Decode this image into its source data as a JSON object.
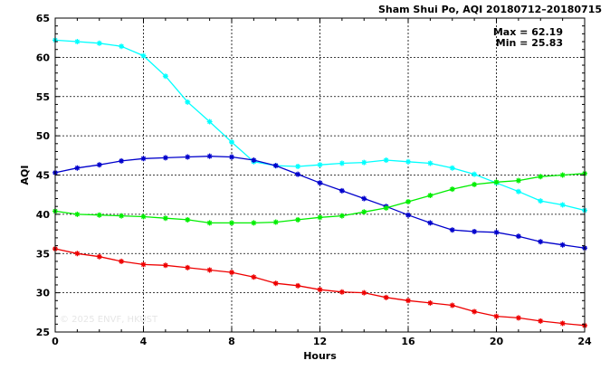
{
  "chart_data": {
    "type": "line",
    "title": "Sham Shui Po, AQI 20180712–20180715",
    "xlabel": "Hours",
    "ylabel": "AQI",
    "xlim": [
      0,
      24
    ],
    "ylim": [
      25,
      65
    ],
    "x_ticks": [
      0,
      4,
      8,
      12,
      16,
      20,
      24
    ],
    "y_ticks": [
      25,
      30,
      35,
      40,
      45,
      50,
      55,
      60,
      65
    ],
    "grid": true,
    "legend": "none",
    "stats": {
      "max_label": "Max = 62.19",
      "min_label": "Min = 25.83"
    },
    "watermark": "© 2025  ENVF, HKUST",
    "x": [
      0,
      1,
      2,
      3,
      4,
      5,
      6,
      7,
      8,
      9,
      10,
      11,
      12,
      13,
      14,
      15,
      16,
      17,
      18,
      19,
      20,
      21,
      22,
      23,
      24
    ],
    "series": [
      {
        "color": "#00ffff",
        "values": [
          62.19,
          62.0,
          61.8,
          61.4,
          60.2,
          57.6,
          54.3,
          51.8,
          49.2,
          46.7,
          46.2,
          46.1,
          46.3,
          46.5,
          46.6,
          46.9,
          46.7,
          46.5,
          45.9,
          45.1,
          44.0,
          42.9,
          41.7,
          41.2,
          40.5
        ]
      },
      {
        "color": "#0000cc",
        "values": [
          45.3,
          45.9,
          46.3,
          46.8,
          47.1,
          47.2,
          47.3,
          47.4,
          47.3,
          46.9,
          46.2,
          45.1,
          44.0,
          43.0,
          42.0,
          41.0,
          39.9,
          38.9,
          38.0,
          37.8,
          37.7,
          37.2,
          36.5,
          36.1,
          35.7
        ]
      },
      {
        "color": "#00ee00",
        "values": [
          40.4,
          40.0,
          39.9,
          39.8,
          39.7,
          39.5,
          39.3,
          38.9,
          38.9,
          38.9,
          39.0,
          39.3,
          39.6,
          39.8,
          40.3,
          40.8,
          41.6,
          42.4,
          43.2,
          43.8,
          44.1,
          44.3,
          44.8,
          45.0,
          45.2
        ]
      },
      {
        "color": "#ee0000",
        "values": [
          35.6,
          35.0,
          34.6,
          34.0,
          33.6,
          33.5,
          33.2,
          32.9,
          32.6,
          32.0,
          31.2,
          30.9,
          30.4,
          30.1,
          30.0,
          29.4,
          29.0,
          28.7,
          28.4,
          27.6,
          27.0,
          26.8,
          26.4,
          26.1,
          25.83
        ]
      }
    ]
  }
}
